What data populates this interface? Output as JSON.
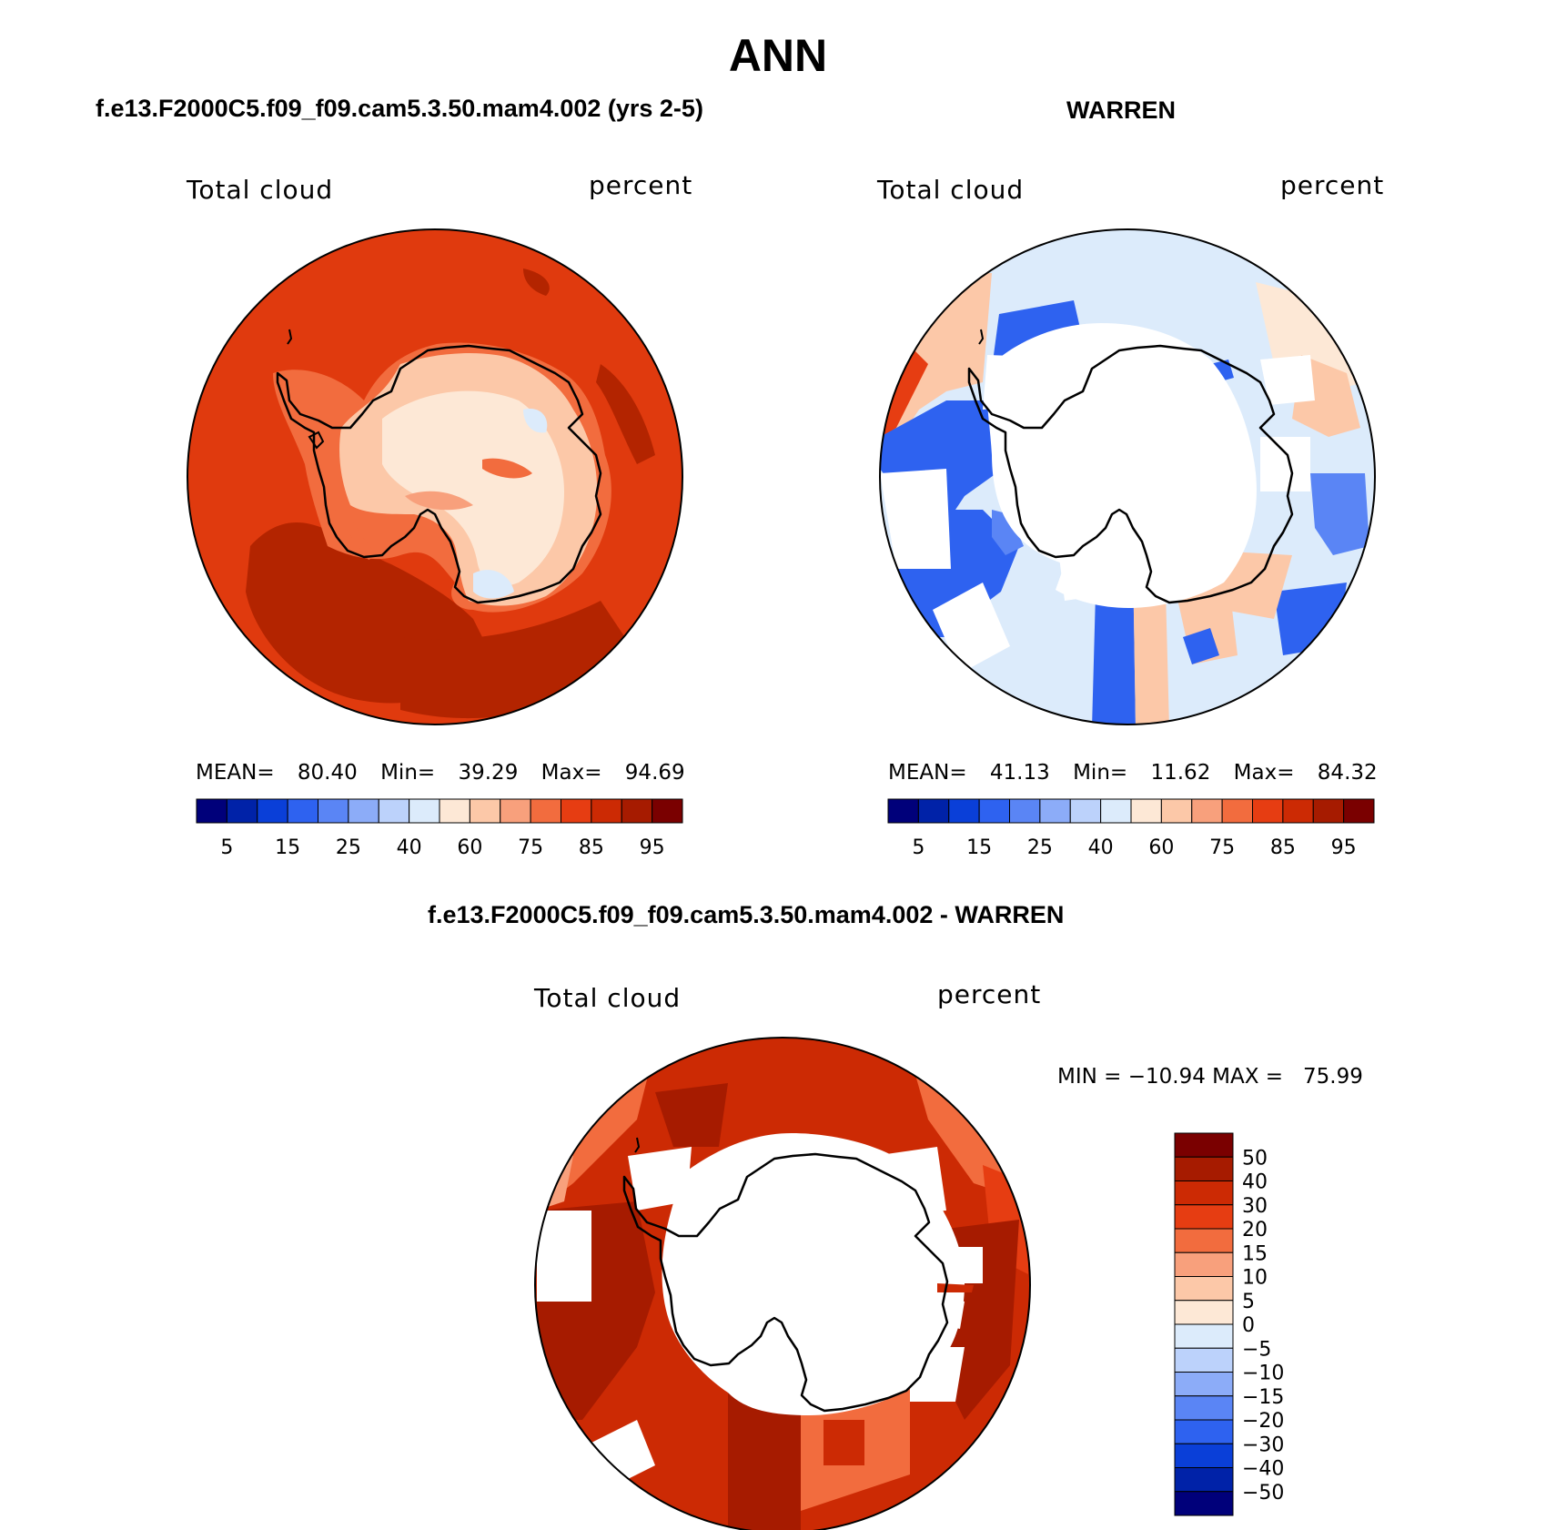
{
  "main_title": "ANN",
  "panels": {
    "model": {
      "title": "f.e13.F2000C5.f09_f09.cam5.3.50.mam4.002 (yrs 2-5)",
      "left_label": "Total cloud",
      "right_label": "percent",
      "stats": {
        "mean_label": "MEAN=",
        "mean": "80.40",
        "min_label": "Min=",
        "min": "39.29",
        "max_label": "Max=",
        "max": "94.69"
      }
    },
    "obs": {
      "title": "WARREN",
      "left_label": "Total cloud",
      "right_label": "percent",
      "stats": {
        "mean_label": "MEAN=",
        "mean": "41.13",
        "min_label": "Min=",
        "min": "11.62",
        "max_label": "Max=",
        "max": "84.32"
      }
    },
    "diff": {
      "title": "f.e13.F2000C5.f09_f09.cam5.3.50.mam4.002 - WARREN",
      "left_label": "Total cloud",
      "right_label": "percent",
      "minmax": "MIN = −10.94 MAX =   75.99"
    }
  },
  "colorbar_abs": {
    "colors": [
      "#00007a",
      "#0022a8",
      "#0a3fd8",
      "#2e62f0",
      "#5a85f5",
      "#8cacf8",
      "#bcd2fb",
      "#dcebfb",
      "#fde8d6",
      "#fcc8a8",
      "#f8a07c",
      "#f26c3e",
      "#e63d12",
      "#cc2a04",
      "#a61b00",
      "#7a0000"
    ],
    "labels": [
      "5",
      "15",
      "25",
      "40",
      "60",
      "75",
      "85",
      "95"
    ]
  },
  "colorbar_diff": {
    "colors": [
      "#7a0000",
      "#a61b00",
      "#cc2a04",
      "#e63d12",
      "#f26c3e",
      "#f8a07c",
      "#fcc8a8",
      "#fde8d6",
      "#dcebfb",
      "#bcd2fb",
      "#8cacf8",
      "#5a85f5",
      "#2e62f0",
      "#0a3fd8",
      "#0022a8",
      "#00007a"
    ],
    "labels": [
      "50",
      "40",
      "30",
      "20",
      "15",
      "10",
      "5",
      "0",
      "−5",
      "−10",
      "−15",
      "−20",
      "−30",
      "−40",
      "−50"
    ]
  }
}
